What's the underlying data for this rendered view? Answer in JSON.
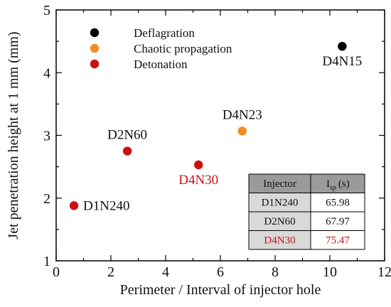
{
  "chart_data": {
    "type": "scatter",
    "xlabel": "Perimeter / Interval of injector hole",
    "ylabel": "Jet penetration height at 1 mm (mm)",
    "xlim": [
      0,
      12
    ],
    "ylim": [
      1,
      5
    ],
    "xticks": [
      "0",
      "2",
      "4",
      "6",
      "8",
      "10",
      "12"
    ],
    "yticks": [
      "1",
      "2",
      "3",
      "4",
      "5"
    ],
    "grid": false,
    "legend": {
      "placement": "top-left",
      "entries": [
        {
          "label": "Deflagration",
          "color": "#000000"
        },
        {
          "label": "Chaotic propagation",
          "color": "#f28c1e"
        },
        {
          "label": "Detonation",
          "color": "#cc1111"
        }
      ]
    },
    "points": [
      {
        "label": "D1N240",
        "x": 0.65,
        "y": 1.88,
        "regime": "Detonation",
        "color": "#cc1111",
        "label_color": "#111111",
        "label_side": "right"
      },
      {
        "label": "D2N60",
        "x": 2.6,
        "y": 2.75,
        "regime": "Detonation",
        "color": "#cc1111",
        "label_color": "#111111",
        "label_side": "above"
      },
      {
        "label": "D4N30",
        "x": 5.2,
        "y": 2.53,
        "regime": "Detonation",
        "color": "#cc1111",
        "label_color": "#cc1111",
        "label_side": "below"
      },
      {
        "label": "D4N23",
        "x": 6.8,
        "y": 3.07,
        "regime": "Chaotic propagation",
        "color": "#f28c1e",
        "label_color": "#111111",
        "label_side": "above"
      },
      {
        "label": "D4N15",
        "x": 10.45,
        "y": 4.42,
        "regime": "Deflagration",
        "color": "#000000",
        "label_color": "#111111",
        "label_side": "below"
      }
    ],
    "table": {
      "headers": [
        "Injector",
        "I",
        "sp",
        "(s)"
      ],
      "rows": [
        {
          "injector": "D1N240",
          "isp": "65.98",
          "color": "#111111"
        },
        {
          "injector": "D2N60",
          "isp": "67.97",
          "color": "#111111"
        },
        {
          "injector": "D4N30",
          "isp": "75.47",
          "color": "#cc1111"
        }
      ],
      "header_bg": "#9a9a9a",
      "row_bg_a": "#d9d9d9",
      "row_bg_b": "#ffffff"
    }
  }
}
